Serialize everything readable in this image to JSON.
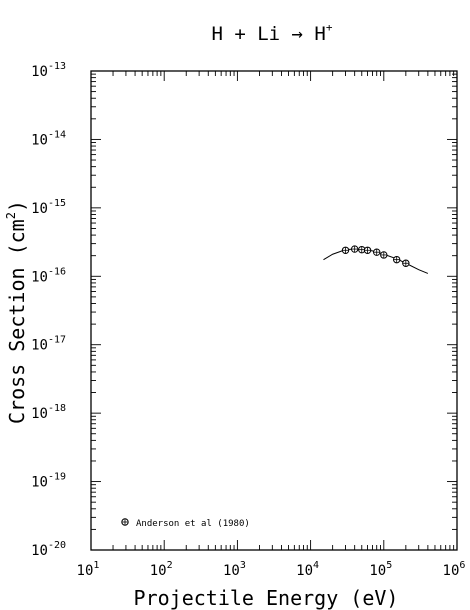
{
  "chart_data": {
    "type": "scatter",
    "title": {
      "base": "H + Li → H",
      "sup": "+"
    },
    "xlabel": "Projectile Energy (eV)",
    "ylabel": {
      "base": "Cross Section (cm",
      "sup": "2",
      "tail": ")"
    },
    "x_scale": "log",
    "y_scale": "log",
    "xlim": [
      10,
      1000000
    ],
    "ylim": [
      1e-20,
      1e-13
    ],
    "x_ticks": [
      {
        "base": "10",
        "exp": "1",
        "value": 10
      },
      {
        "base": "10",
        "exp": "2",
        "value": 100
      },
      {
        "base": "10",
        "exp": "3",
        "value": 1000
      },
      {
        "base": "10",
        "exp": "4",
        "value": 10000
      },
      {
        "base": "10",
        "exp": "5",
        "value": 100000
      },
      {
        "base": "10",
        "exp": "6",
        "value": 1000000
      }
    ],
    "y_ticks": [
      {
        "base": "10",
        "exp": "-20",
        "value": 1e-20
      },
      {
        "base": "10",
        "exp": "-19",
        "value": 1e-19
      },
      {
        "base": "10",
        "exp": "-18",
        "value": 1e-18
      },
      {
        "base": "10",
        "exp": "-17",
        "value": 1e-17
      },
      {
        "base": "10",
        "exp": "-16",
        "value": 1e-16
      },
      {
        "base": "10",
        "exp": "-15",
        "value": 1e-15
      },
      {
        "base": "10",
        "exp": "-14",
        "value": 1e-14
      },
      {
        "base": "10",
        "exp": "-13",
        "value": 1e-13
      }
    ],
    "grid": false,
    "legend_position": "bottom-left",
    "series": [
      {
        "name": "Anderson et al (1980)",
        "marker": "circle-plus",
        "x": [
          30000,
          40000,
          50000,
          60000,
          80000,
          100000,
          150000,
          200000
        ],
        "y": [
          2.4e-16,
          2.5e-16,
          2.45e-16,
          2.4e-16,
          2.25e-16,
          2.05e-16,
          1.75e-16,
          1.55e-16
        ]
      }
    ],
    "fit_curve": {
      "x": [
        15000,
        20000,
        30000,
        40000,
        50000,
        70000,
        100000,
        150000,
        200000,
        300000,
        400000
      ],
      "y": [
        1.75e-16,
        2.1e-16,
        2.45e-16,
        2.5e-16,
        2.45e-16,
        2.35e-16,
        2.1e-16,
        1.8e-16,
        1.55e-16,
        1.25e-16,
        1.1e-16
      ]
    }
  }
}
